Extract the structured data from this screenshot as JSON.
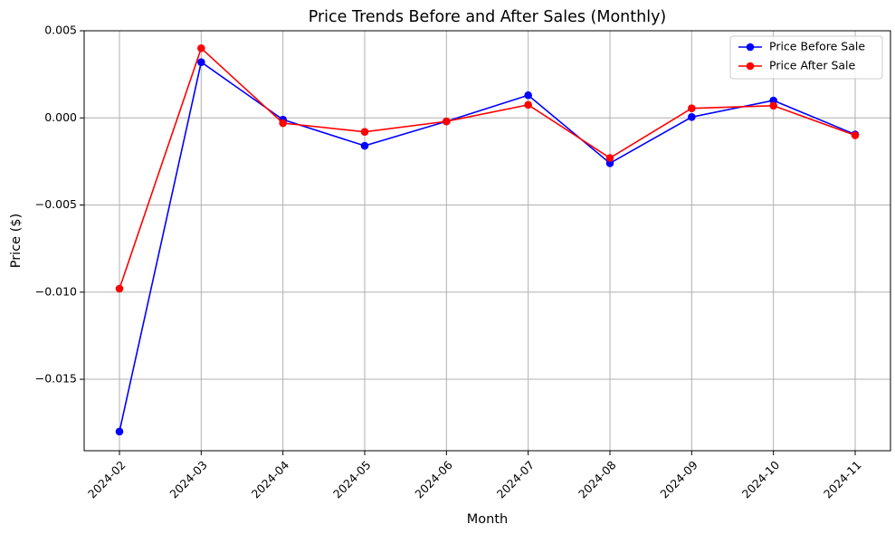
{
  "chart_data": {
    "type": "line",
    "title": "Price Trends Before and After Sales (Monthly)",
    "xlabel": "Month",
    "ylabel": "Price ($)",
    "categories": [
      "2024-02",
      "2024-03",
      "2024-04",
      "2024-05",
      "2024-06",
      "2024-07",
      "2024-08",
      "2024-09",
      "2024-10",
      "2024-11"
    ],
    "ylim": [
      -0.0191,
      0.005
    ],
    "yticks": [
      0.005,
      0.0,
      -0.005,
      -0.01,
      -0.015
    ],
    "ytick_labels": [
      "0.005",
      "0.000",
      "−0.005",
      "−0.010",
      "−0.015"
    ],
    "grid": true,
    "legend_position": "top-right",
    "series": [
      {
        "name": "Price Before Sale",
        "color": "#0000ff",
        "values": [
          -0.018,
          0.0032,
          -0.0001,
          -0.0016,
          -0.0002,
          0.0013,
          -0.0026,
          5e-05,
          0.001,
          -0.00095
        ]
      },
      {
        "name": "Price After Sale",
        "color": "#ff0000",
        "values": [
          -0.0098,
          0.004,
          -0.0003,
          -0.0008,
          -0.0002,
          0.00075,
          -0.0023,
          0.00055,
          0.0007,
          -0.001
        ]
      }
    ]
  }
}
